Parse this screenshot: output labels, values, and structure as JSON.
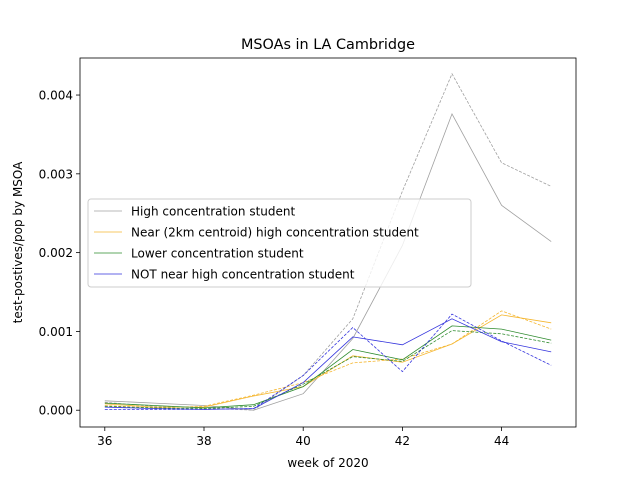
{
  "chart_data": {
    "type": "line",
    "title": "MSOAs in LA Cambridge",
    "xlabel": "week of 2020",
    "ylabel": "test-postives/pop by MSOA",
    "xlim": [
      35.5,
      45.5
    ],
    "ylim": [
      -0.000213,
      0.00447
    ],
    "xticks": [
      36,
      38,
      40,
      42,
      44
    ],
    "xtick_labels": [
      "36",
      "38",
      "40",
      "42",
      "44"
    ],
    "yticks": [
      0,
      0.001,
      0.002,
      0.003,
      0.004
    ],
    "ytick_labels": [
      "0.000",
      "0.001",
      "0.002",
      "0.003",
      "0.004"
    ],
    "grid": false,
    "legend_position": "center-left",
    "x": [
      36,
      37,
      38,
      39,
      40,
      41,
      42,
      43,
      44,
      45
    ],
    "series": [
      {
        "name": "High concentration student",
        "color": "#a0a0a0",
        "style": "solid",
        "values": [
          0.00012,
          9e-05,
          6e-05,
          0.0,
          0.00021,
          0.00091,
          0.00209,
          0.00376,
          0.0026,
          0.00214
        ]
      },
      {
        "name": "",
        "color": "#a0a0a0",
        "style": "dashed",
        "values": [
          0.0001,
          5e-05,
          3e-05,
          0.0,
          0.00044,
          0.00116,
          0.00278,
          0.00427,
          0.00314,
          0.00284
        ]
      },
      {
        "name": "Near (2km centroid) high concentration student",
        "color": "#f5b731",
        "style": "solid",
        "values": [
          8e-05,
          4e-05,
          4e-05,
          0.00018,
          0.0003,
          0.00069,
          0.00061,
          0.00084,
          0.00121,
          0.00111
        ]
      },
      {
        "name": "",
        "color": "#f5b731",
        "style": "dashed",
        "values": [
          6e-05,
          3e-05,
          5e-05,
          0.00019,
          0.00035,
          0.0006,
          0.00065,
          0.00084,
          0.00126,
          0.00103
        ]
      },
      {
        "name": "Lower concentration student",
        "color": "#2e8b2e",
        "style": "solid",
        "values": [
          9e-05,
          6e-05,
          3e-05,
          7e-05,
          0.0003,
          0.00077,
          0.00064,
          0.00107,
          0.00103,
          0.00089
        ]
      },
      {
        "name": "",
        "color": "#2e8b2e",
        "style": "dashed",
        "values": [
          5e-05,
          3e-05,
          2e-05,
          5e-05,
          0.00033,
          0.00068,
          0.00062,
          0.00101,
          0.00097,
          0.00085
        ]
      },
      {
        "name": "NOT near high concentration student",
        "color": "#3333dd",
        "style": "solid",
        "values": [
          4e-05,
          2e-05,
          1e-05,
          2e-05,
          0.00035,
          0.00093,
          0.00083,
          0.00116,
          0.00087,
          0.00074
        ]
      },
      {
        "name": "",
        "color": "#3333dd",
        "style": "dashed",
        "values": [
          1e-05,
          1e-05,
          1e-05,
          2e-05,
          0.00044,
          0.00105,
          0.00049,
          0.00122,
          0.00088,
          0.00057
        ]
      }
    ]
  }
}
